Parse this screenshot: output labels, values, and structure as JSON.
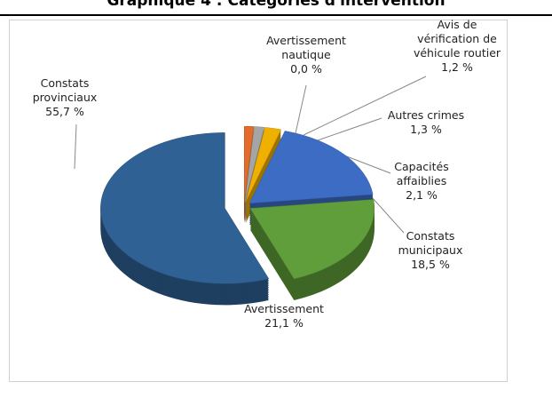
{
  "chart_data": {
    "type": "pie",
    "title": "Graphique 4 : Catégories d'intervention",
    "categories": [
      "Avertissement nautique",
      "Avis de vérification de véhicule routier",
      "Autres crimes",
      "Capacités affaiblies",
      "Constats municipaux",
      "Avertissement",
      "Constats provinciaux"
    ],
    "values": [
      0.0,
      1.2,
      1.3,
      2.1,
      18.5,
      21.1,
      55.7
    ],
    "value_labels": [
      "0,0 %",
      "1,2 %",
      "1,3 %",
      "2,1 %",
      "18,5 %",
      "21,1 %",
      "55,7 %"
    ],
    "colors": [
      "#c0504d",
      "#e46c2a",
      "#a5a5a5",
      "#f0b000",
      "#3d6cc4",
      "#5f9e3a",
      "#2f6194"
    ]
  }
}
